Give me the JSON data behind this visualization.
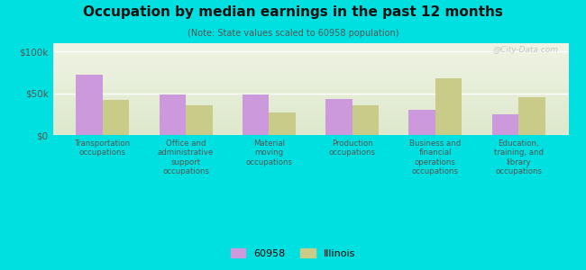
{
  "title": "Occupation by median earnings in the past 12 months",
  "subtitle": "(Note: State values scaled to 60958 population)",
  "background_color": "#00e0e0",
  "categories": [
    "Transportation\noccupations",
    "Office and\nadministrative\nsupport\noccupations",
    "Material\nmoving\noccupations",
    "Production\noccupations",
    "Business and\nfinancial\noperations\noccupations",
    "Education,\ntraining, and\nlibrary\noccupations"
  ],
  "values_60958": [
    72000,
    49000,
    48000,
    43000,
    30000,
    25000
  ],
  "values_illinois": [
    42000,
    36000,
    27000,
    36000,
    68000,
    45000
  ],
  "color_60958": "#cc99dd",
  "color_illinois": "#c8cc88",
  "ylim": [
    0,
    110000
  ],
  "yticks": [
    0,
    50000,
    100000
  ],
  "ytick_labels": [
    "$0",
    "$50k",
    "$100k"
  ],
  "legend_labels": [
    "60958",
    "Illinois"
  ],
  "watermark": "@City-Data.com",
  "bar_width": 0.32
}
